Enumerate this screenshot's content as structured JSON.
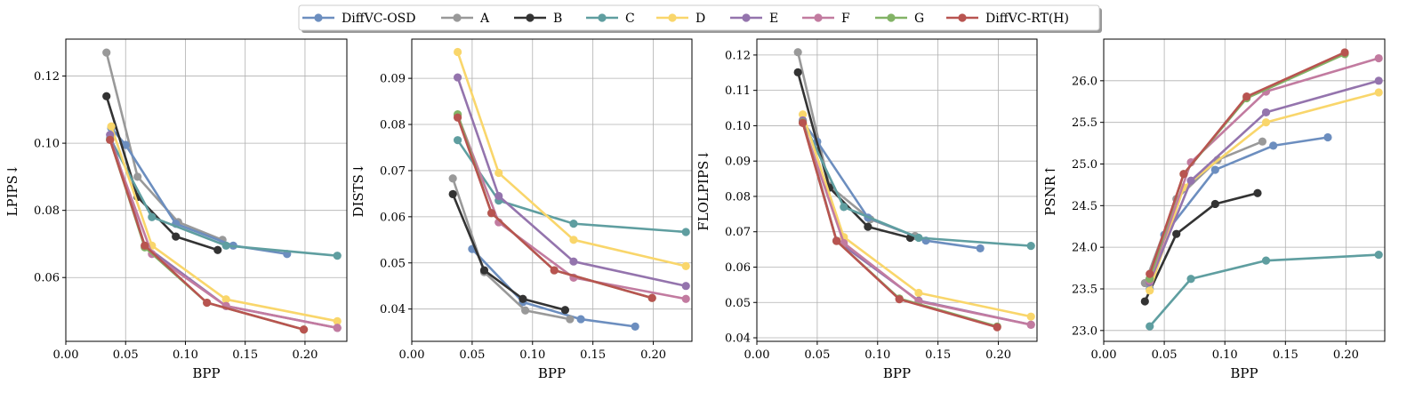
{
  "legend": [
    {
      "name": "DiffVC-OSD",
      "color": "#6c8ebf"
    },
    {
      "name": "A",
      "color": "#999999"
    },
    {
      "name": "B",
      "color": "#333333"
    },
    {
      "name": "C",
      "color": "#5f9ea0"
    },
    {
      "name": "D",
      "color": "#f9d66b"
    },
    {
      "name": "E",
      "color": "#9474ad"
    },
    {
      "name": "F",
      "color": "#c27ba0"
    },
    {
      "name": "G",
      "color": "#82b366"
    },
    {
      "name": "DiffVC-RT(H)",
      "color": "#b85450"
    }
  ],
  "chart_data": [
    {
      "type": "line",
      "xlabel": "BPP",
      "ylabel": "LPIPS↓",
      "xlim": [
        0.0,
        0.235
      ],
      "ylim": [
        0.041,
        0.131
      ],
      "xticks": [
        0.0,
        0.05,
        0.1,
        0.15,
        0.2
      ],
      "xtick_labels": [
        "0.00",
        "0.05",
        "0.10",
        "0.15",
        "0.20"
      ],
      "yticks": [
        0.06,
        0.08,
        0.1,
        0.12
      ],
      "ytick_labels": [
        "0.06",
        "0.08",
        "0.10",
        "0.12"
      ],
      "grid": true,
      "series": [
        {
          "name": "A",
          "x": [
            0.034,
            0.06,
            0.094,
            0.131
          ],
          "y": [
            0.127,
            0.09,
            0.0765,
            0.0712
          ]
        },
        {
          "name": "DiffVC-OSD",
          "x": [
            0.038,
            0.05,
            0.092,
            0.14,
            0.185
          ],
          "y": [
            0.1045,
            0.0995,
            0.076,
            0.0695,
            0.067
          ]
        },
        {
          "name": "B",
          "x": [
            0.034,
            0.06,
            0.092,
            0.127
          ],
          "y": [
            0.114,
            0.084,
            0.0722,
            0.0682
          ]
        },
        {
          "name": "C",
          "x": [
            0.037,
            0.072,
            0.134,
            0.227
          ],
          "y": [
            0.1015,
            0.078,
            0.0695,
            0.0665
          ]
        },
        {
          "name": "D",
          "x": [
            0.038,
            0.072,
            0.134,
            0.227
          ],
          "y": [
            0.105,
            0.0695,
            0.0535,
            0.047
          ]
        },
        {
          "name": "E",
          "x": [
            0.037,
            0.066,
            0.134,
            0.227
          ],
          "y": [
            0.1025,
            0.0695,
            0.0515,
            0.045
          ]
        },
        {
          "name": "F",
          "x": [
            0.037,
            0.072,
            0.134,
            0.227
          ],
          "y": [
            0.101,
            0.067,
            0.0515,
            0.045
          ]
        },
        {
          "name": "G",
          "x": [
            0.037,
            0.066,
            0.118,
            0.199
          ],
          "y": [
            0.101,
            0.069,
            0.0525,
            0.0445
          ]
        },
        {
          "name": "DiffVC-RT(H)",
          "x": [
            0.037,
            0.066,
            0.118,
            0.199
          ],
          "y": [
            0.101,
            0.0695,
            0.0525,
            0.0445
          ]
        }
      ]
    },
    {
      "type": "line",
      "xlabel": "BPP",
      "ylabel": "DISTS↓",
      "xlim": [
        0.0,
        0.232
      ],
      "ylim": [
        0.033,
        0.0985
      ],
      "xticks": [
        0.0,
        0.05,
        0.1,
        0.15,
        0.2
      ],
      "xtick_labels": [
        "0.00",
        "0.05",
        "0.10",
        "0.15",
        "0.20"
      ],
      "yticks": [
        0.04,
        0.05,
        0.06,
        0.07,
        0.08,
        0.09
      ],
      "ytick_labels": [
        "0.04",
        "0.05",
        "0.06",
        "0.07",
        "0.08",
        "0.09"
      ],
      "grid": true,
      "series": [
        {
          "name": "DiffVC-OSD",
          "x": [
            0.05,
            0.092,
            0.14,
            0.185
          ],
          "y": [
            0.053,
            0.0415,
            0.0378,
            0.0362
          ]
        },
        {
          "name": "A",
          "x": [
            0.034,
            0.06,
            0.094,
            0.131
          ],
          "y": [
            0.0683,
            0.048,
            0.0397,
            0.0378
          ]
        },
        {
          "name": "B",
          "x": [
            0.034,
            0.06,
            0.092,
            0.127
          ],
          "y": [
            0.0649,
            0.0484,
            0.0422,
            0.0398
          ]
        },
        {
          "name": "C",
          "x": [
            0.038,
            0.072,
            0.134,
            0.227
          ],
          "y": [
            0.0766,
            0.0635,
            0.0585,
            0.0567
          ]
        },
        {
          "name": "D",
          "x": [
            0.038,
            0.072,
            0.134,
            0.227
          ],
          "y": [
            0.0957,
            0.0695,
            0.055,
            0.0493
          ]
        },
        {
          "name": "E",
          "x": [
            0.038,
            0.072,
            0.134,
            0.227
          ],
          "y": [
            0.0902,
            0.0645,
            0.0503,
            0.045
          ]
        },
        {
          "name": "F",
          "x": [
            0.038,
            0.072,
            0.134,
            0.227
          ],
          "y": [
            0.082,
            0.0588,
            0.0468,
            0.0422
          ]
        },
        {
          "name": "G",
          "x": [
            0.038,
            0.066,
            0.118,
            0.199
          ],
          "y": [
            0.0822,
            0.0608,
            0.0484,
            0.0424
          ]
        },
        {
          "name": "DiffVC-RT(H)",
          "x": [
            0.038,
            0.066,
            0.118,
            0.199
          ],
          "y": [
            0.0815,
            0.0608,
            0.0484,
            0.0424
          ]
        }
      ]
    },
    {
      "type": "line",
      "xlabel": "BPP",
      "ylabel": "FLOLPIPS↓",
      "xlim": [
        0.0,
        0.232
      ],
      "ylim": [
        0.039,
        0.1245
      ],
      "xticks": [
        0.0,
        0.05,
        0.1,
        0.15,
        0.2
      ],
      "xtick_labels": [
        "0.00",
        "0.05",
        "0.10",
        "0.15",
        "0.20"
      ],
      "yticks": [
        0.04,
        0.05,
        0.06,
        0.07,
        0.08,
        0.09,
        0.1,
        0.11,
        0.12
      ],
      "ytick_labels": [
        "0.04",
        "0.05",
        "0.06",
        "0.07",
        "0.08",
        "0.09",
        "0.10",
        "0.11",
        "0.12"
      ],
      "grid": true,
      "series": [
        {
          "name": "A",
          "x": [
            0.034,
            0.06,
            0.094,
            0.131
          ],
          "y": [
            0.1208,
            0.083,
            0.0735,
            0.0688
          ]
        },
        {
          "name": "DiffVC-OSD",
          "x": [
            0.038,
            0.05,
            0.092,
            0.14,
            0.185
          ],
          "y": [
            0.1012,
            0.0955,
            0.074,
            0.0675,
            0.0653
          ]
        },
        {
          "name": "B",
          "x": [
            0.034,
            0.06,
            0.092,
            0.127
          ],
          "y": [
            0.1151,
            0.0825,
            0.0714,
            0.0683
          ]
        },
        {
          "name": "C",
          "x": [
            0.038,
            0.072,
            0.134,
            0.227
          ],
          "y": [
            0.1015,
            0.077,
            0.0683,
            0.066
          ]
        },
        {
          "name": "D",
          "x": [
            0.038,
            0.072,
            0.134,
            0.227
          ],
          "y": [
            0.1032,
            0.0685,
            0.0527,
            0.046
          ]
        },
        {
          "name": "E",
          "x": [
            0.038,
            0.066,
            0.134,
            0.227
          ],
          "y": [
            0.1015,
            0.0675,
            0.0505,
            0.0437
          ]
        },
        {
          "name": "F",
          "x": [
            0.038,
            0.072,
            0.134,
            0.227
          ],
          "y": [
            0.1008,
            0.0668,
            0.0503,
            0.0437
          ]
        },
        {
          "name": "G",
          "x": [
            0.038,
            0.066,
            0.118,
            0.199
          ],
          "y": [
            0.101,
            0.0674,
            0.0511,
            0.0432
          ]
        },
        {
          "name": "DiffVC-RT(H)",
          "x": [
            0.038,
            0.066,
            0.118,
            0.199
          ],
          "y": [
            0.1008,
            0.0674,
            0.0509,
            0.043
          ]
        }
      ]
    },
    {
      "type": "line",
      "xlabel": "BPP",
      "ylabel": "PSNR↑",
      "xlim": [
        0.0,
        0.232
      ],
      "ylim": [
        22.87,
        26.5
      ],
      "xticks": [
        0.0,
        0.05,
        0.1,
        0.15,
        0.2
      ],
      "xtick_labels": [
        "0.00",
        "0.05",
        "0.10",
        "0.15",
        "0.20"
      ],
      "yticks": [
        23.0,
        23.5,
        24.0,
        24.5,
        25.0,
        25.5,
        26.0
      ],
      "ytick_labels": [
        "23.0",
        "23.5",
        "24.0",
        "24.5",
        "25.0",
        "25.5",
        "26.0"
      ],
      "grid": true,
      "series": [
        {
          "name": "B",
          "x": [
            0.034,
            0.06,
            0.092,
            0.127
          ],
          "y": [
            23.35,
            24.16,
            24.52,
            24.65
          ]
        },
        {
          "name": "C",
          "x": [
            0.038,
            0.072,
            0.134,
            0.227
          ],
          "y": [
            23.05,
            23.62,
            23.84,
            23.91
          ]
        },
        {
          "name": "DiffVC-OSD",
          "x": [
            0.038,
            0.05,
            0.092,
            0.14,
            0.185
          ],
          "y": [
            23.5,
            24.15,
            24.93,
            25.22,
            25.32
          ]
        },
        {
          "name": "A",
          "x": [
            0.034,
            0.06,
            0.094,
            0.131
          ],
          "y": [
            23.57,
            24.58,
            25.05,
            25.27
          ]
        },
        {
          "name": "D",
          "x": [
            0.038,
            0.066,
            0.134,
            0.227
          ],
          "y": [
            23.48,
            24.72,
            25.5,
            25.86
          ]
        },
        {
          "name": "E",
          "x": [
            0.038,
            0.072,
            0.134,
            0.227
          ],
          "y": [
            23.58,
            24.8,
            25.62,
            26.0
          ]
        },
        {
          "name": "F",
          "x": [
            0.038,
            0.072,
            0.134,
            0.227
          ],
          "y": [
            23.6,
            25.02,
            25.87,
            26.27
          ]
        },
        {
          "name": "G",
          "x": [
            0.038,
            0.066,
            0.118,
            0.199
          ],
          "y": [
            23.62,
            24.88,
            25.79,
            26.32
          ]
        },
        {
          "name": "DiffVC-RT(H)",
          "x": [
            0.038,
            0.066,
            0.118,
            0.199
          ],
          "y": [
            23.68,
            24.88,
            25.81,
            26.34
          ]
        }
      ]
    }
  ]
}
